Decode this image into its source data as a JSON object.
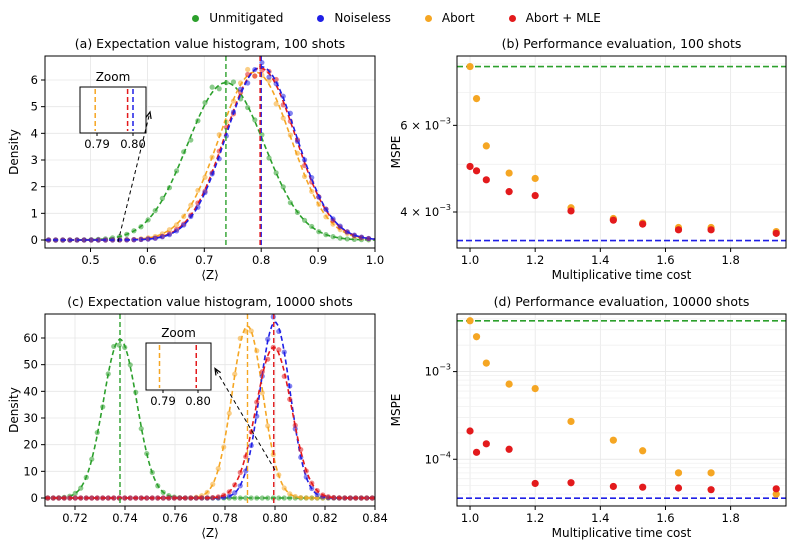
{
  "legend": {
    "entries": [
      {
        "label": "Unmitigated",
        "color": "#2ca02c"
      },
      {
        "label": "Noiseless",
        "color": "#1f1fe6"
      },
      {
        "label": "Abort",
        "color": "#f5a623"
      },
      {
        "label": "Abort + MLE",
        "color": "#e31a1c"
      }
    ],
    "placement": "top-center"
  },
  "chart_data": [
    {
      "id": "a",
      "type": "line",
      "title": "(a) Expectation value histogram, 100 shots",
      "xlabel": "⟨Z⟩",
      "ylabel": "Density",
      "xlim": [
        0.42,
        1.0
      ],
      "ylim": [
        -0.3,
        6.9
      ],
      "xticks": [
        0.5,
        0.6,
        0.7,
        0.8,
        0.9,
        1.0
      ],
      "xtick_labels": [
        "0.5",
        "0.6",
        "0.7",
        "0.8",
        "0.9",
        "1.0"
      ],
      "yticks": [
        0,
        1,
        2,
        3,
        4,
        5,
        6
      ],
      "ytick_labels": [
        "0",
        "1",
        "2",
        "3",
        "4",
        "5",
        "6"
      ],
      "grid": true,
      "series": [
        {
          "key": "unmitigated",
          "mean": 0.738,
          "peak": 5.9,
          "color": "#2ca02c"
        },
        {
          "key": "abort",
          "mean": 0.789,
          "peak": 6.3,
          "color": "#f5a623"
        },
        {
          "key": "mle",
          "mean": 0.798,
          "peak": 6.45,
          "color": "#e31a1c"
        },
        {
          "key": "noiseless",
          "mean": 0.8,
          "peak": 6.5,
          "color": "#1f1fe6"
        }
      ],
      "vlines": [
        {
          "x": 0.738,
          "color": "#2ca02c"
        },
        {
          "x": 0.8,
          "color": "#1f1fe6"
        },
        {
          "x": 0.798,
          "color": "#e31a1c"
        }
      ],
      "zoom": {
        "title": "Zoom",
        "tick_labels": [
          "0.79",
          "0.80"
        ],
        "lines": [
          {
            "x": 0.7895,
            "color": "#f5a623"
          },
          {
            "x": 0.7985,
            "color": "#e31a1c"
          },
          {
            "x": 0.8,
            "color": "#1f1fe6"
          }
        ]
      }
    },
    {
      "id": "b",
      "type": "scatter",
      "title": "(b) Performance evaluation, 100 shots",
      "xlabel": "Multiplicative time cost",
      "ylabel": "MSPE",
      "yscale": "log",
      "xlim": [
        0.96,
        1.97
      ],
      "ylim": [
        0.00338,
        0.0083
      ],
      "xticks": [
        1.0,
        1.2,
        1.4,
        1.6,
        1.8
      ],
      "xtick_labels": [
        "1.0",
        "1.2",
        "1.4",
        "1.6",
        "1.8"
      ],
      "yticks": [
        0.004,
        0.006
      ],
      "ytick_base": [
        "4 × 10",
        "6 × 10"
      ],
      "ytick_exp": [
        "−3",
        "−3"
      ],
      "grid": true,
      "hlines": [
        {
          "y": 0.0079,
          "color": "#2ca02c"
        },
        {
          "y": 0.0035,
          "color": "#1f1fe6"
        }
      ],
      "series": [
        {
          "key": "abort",
          "color": "#f5a623",
          "x": [
            1.0,
            1.02,
            1.05,
            1.12,
            1.2,
            1.31,
            1.44,
            1.53,
            1.64,
            1.74,
            1.94
          ],
          "y": [
            0.0079,
            0.0068,
            0.00545,
            0.0048,
            0.00468,
            0.00408,
            0.00388,
            0.0038,
            0.00372,
            0.00372,
            0.00365
          ]
        },
        {
          "key": "mle",
          "color": "#e31a1c",
          "x": [
            1.0,
            1.02,
            1.05,
            1.12,
            1.2,
            1.31,
            1.44,
            1.53,
            1.64,
            1.74,
            1.94
          ],
          "y": [
            0.00495,
            0.00485,
            0.00465,
            0.0044,
            0.00432,
            0.00402,
            0.00385,
            0.00378,
            0.00368,
            0.00368,
            0.00362
          ]
        }
      ]
    },
    {
      "id": "c",
      "type": "line",
      "title": "(c) Expectation value histogram, 10000 shots",
      "xlabel": "⟨Z⟩",
      "ylabel": "Density",
      "xlim": [
        0.708,
        0.84
      ],
      "ylim": [
        -3,
        69
      ],
      "xticks": [
        0.72,
        0.74,
        0.76,
        0.78,
        0.8,
        0.82,
        0.84
      ],
      "xtick_labels": [
        "0.72",
        "0.74",
        "0.76",
        "0.78",
        "0.80",
        "0.82",
        "0.84"
      ],
      "yticks": [
        0,
        10,
        20,
        30,
        40,
        50,
        60
      ],
      "ytick_labels": [
        "0",
        "10",
        "20",
        "30",
        "40",
        "50",
        "60"
      ],
      "grid": true,
      "series": [
        {
          "key": "unmitigated",
          "mean": 0.738,
          "peak": 59.5,
          "color": "#2ca02c"
        },
        {
          "key": "abort",
          "mean": 0.789,
          "peak": 64.5,
          "color": "#f5a623"
        },
        {
          "key": "noiseless",
          "mean": 0.8,
          "peak": 66,
          "color": "#1f1fe6"
        },
        {
          "key": "mle",
          "mean": 0.7995,
          "peak": 56.5,
          "color": "#e31a1c"
        }
      ],
      "vlines": [
        {
          "x": 0.738,
          "color": "#2ca02c"
        },
        {
          "x": 0.789,
          "color": "#f5a623"
        },
        {
          "x": 0.7995,
          "color": "#e31a1c"
        }
      ],
      "zoom": {
        "title": "Zoom",
        "tick_labels": [
          "0.79",
          "0.80"
        ],
        "lines": [
          {
            "x": 0.789,
            "color": "#f5a623"
          },
          {
            "x": 0.7995,
            "color": "#e31a1c"
          }
        ]
      }
    },
    {
      "id": "d",
      "type": "scatter",
      "title": "(d) Performance evaluation, 10000 shots",
      "xlabel": "Multiplicative time cost",
      "ylabel": "MSPE",
      "yscale": "log",
      "xlim": [
        0.96,
        1.97
      ],
      "ylim": [
        2.93e-05,
        0.00454
      ],
      "xticks": [
        1.0,
        1.2,
        1.4,
        1.6,
        1.8
      ],
      "xtick_labels": [
        "1.0",
        "1.2",
        "1.4",
        "1.6",
        "1.8"
      ],
      "yticks": [
        0.0001,
        0.001
      ],
      "ytick_base": [
        "10",
        "10"
      ],
      "ytick_exp": [
        "−4",
        "−3"
      ],
      "grid": true,
      "hlines": [
        {
          "y": 0.0038,
          "color": "#2ca02c"
        },
        {
          "y": 3.6e-05,
          "color": "#1f1fe6"
        }
      ],
      "series": [
        {
          "key": "abort",
          "color": "#f5a623",
          "x": [
            1.0,
            1.02,
            1.05,
            1.12,
            1.2,
            1.31,
            1.44,
            1.53,
            1.64,
            1.74,
            1.94
          ],
          "y": [
            0.0038,
            0.0025,
            0.00125,
            0.00072,
            0.00064,
            0.00027,
            0.000165,
            0.000125,
            7e-05,
            7e-05,
            4e-05
          ]
        },
        {
          "key": "mle",
          "color": "#e31a1c",
          "x": [
            1.0,
            1.02,
            1.05,
            1.12,
            1.2,
            1.31,
            1.44,
            1.53,
            1.64,
            1.74,
            1.94
          ],
          "y": [
            0.00021,
            0.00012,
            0.00015,
            0.00013,
            5.3e-05,
            5.4e-05,
            4.9e-05,
            4.8e-05,
            4.7e-05,
            4.5e-05,
            4.6e-05
          ]
        }
      ]
    }
  ]
}
